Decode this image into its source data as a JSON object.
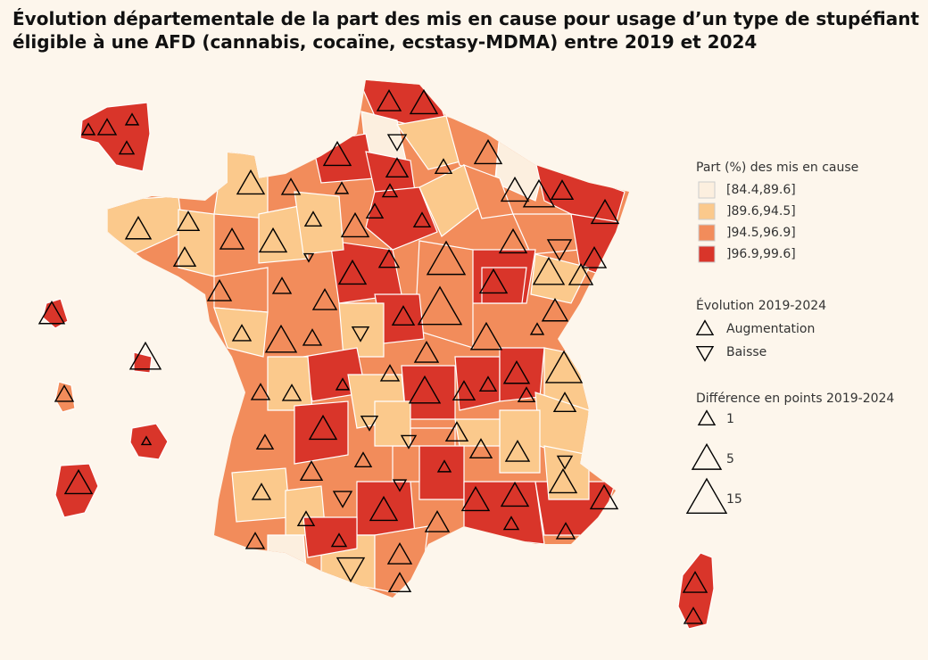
{
  "title": [
    "Évolution départementale de la part des mis en cause pour usage d’un type de stupéfiant",
    "éligible à une AFD (cannabis, cocaïne, ecstasy-MDMA) entre 2019 et 2024"
  ],
  "legend": {
    "fill_title": "Part (%) des mis en cause",
    "fill_classes": [
      {
        "label": "[84.4,89.6]",
        "color": "#fcefdf"
      },
      {
        "label": "]89.6,94.5]",
        "color": "#fbc98c"
      },
      {
        "label": "]94.5,96.9]",
        "color": "#f28c5b"
      },
      {
        "label": "]96.9,99.6]",
        "color": "#d9352a"
      }
    ],
    "trend_title": "Évolution 2019-2024",
    "trend_items": [
      "Augmentation",
      "Baisse"
    ],
    "size_title": "Différence en points 2019-2024",
    "size_items": [
      "1",
      "5",
      "15"
    ]
  }
}
